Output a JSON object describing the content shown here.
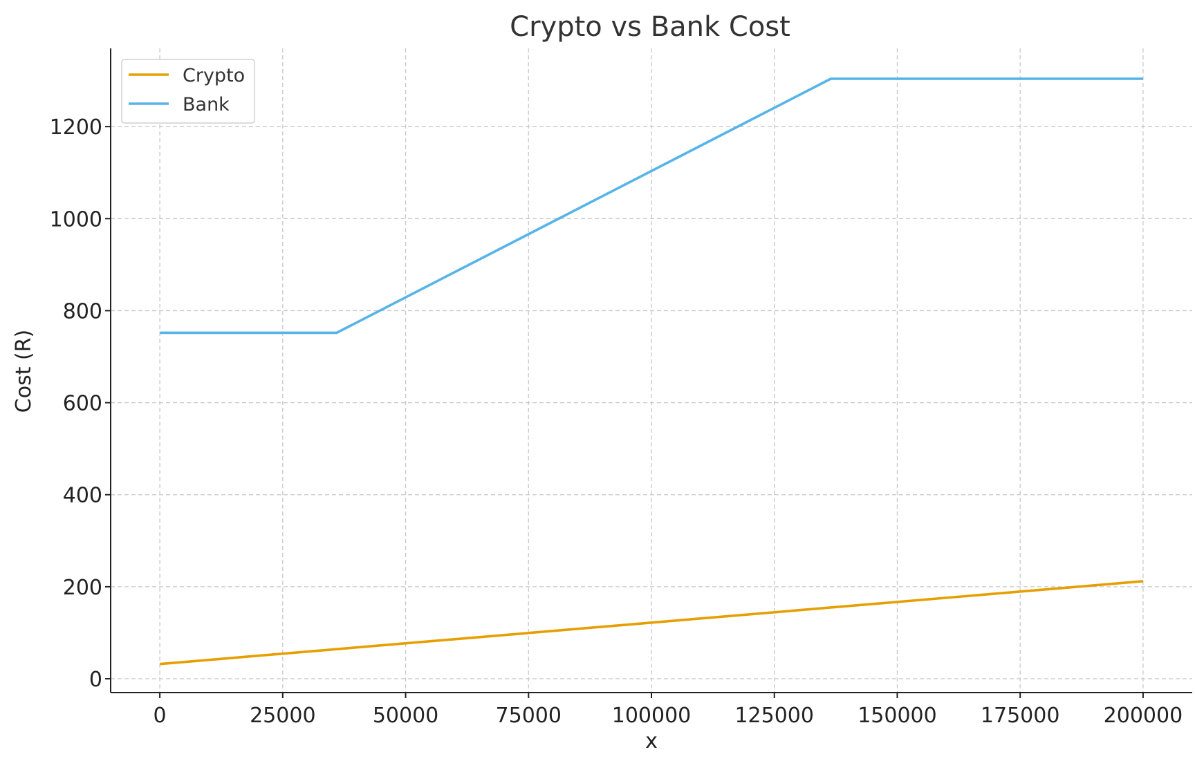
{
  "chart_data": {
    "type": "line",
    "title": "Crypto vs Bank Cost",
    "xlabel": "x",
    "ylabel": "Cost (R)",
    "xlim": [
      -10000,
      210000
    ],
    "ylim": [
      -30,
      1370
    ],
    "x_ticks": [
      0,
      25000,
      50000,
      75000,
      100000,
      125000,
      150000,
      175000,
      200000
    ],
    "x_tick_labels": [
      "0",
      "25000",
      "50000",
      "75000",
      "100000",
      "125000",
      "150000",
      "175000",
      "200000"
    ],
    "y_ticks": [
      0,
      200,
      400,
      600,
      800,
      1000,
      1200
    ],
    "y_tick_labels": [
      "0",
      "200",
      "400",
      "600",
      "800",
      "1000",
      "1200"
    ],
    "grid": true,
    "legend_position": "top-left",
    "series": [
      {
        "name": "Crypto",
        "color": "#E69F00",
        "x": [
          0,
          200000
        ],
        "y": [
          32,
          212
        ]
      },
      {
        "name": "Bank",
        "color": "#56B4E9",
        "x": [
          0,
          36000,
          136500,
          200000
        ],
        "y": [
          752,
          752,
          1304,
          1304
        ]
      }
    ]
  }
}
